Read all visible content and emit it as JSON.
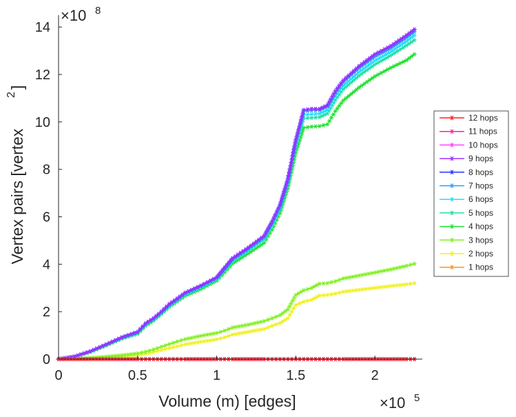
{
  "chart_data": {
    "type": "line",
    "title": "",
    "xlabel": "Volume (m) [edges]",
    "ylabel": "Vertex pairs [vertex",
    "ylabel_superscript": "2",
    "ylabel_close": "]",
    "xlim": [
      0,
      230000
    ],
    "ylim": [
      0,
      1450000000
    ],
    "x_exponent": "×10",
    "x_exponent_power": "5",
    "y_exponent": "×10",
    "y_exponent_power": "8",
    "x_ticks": [
      0,
      50000,
      100000,
      150000,
      200000
    ],
    "x_tick_labels": [
      "0",
      "0.5",
      "1",
      "1.5",
      "2"
    ],
    "y_ticks": [
      0,
      200000000,
      400000000,
      600000000,
      800000000,
      1000000000,
      1200000000,
      1400000000
    ],
    "y_tick_labels": [
      "0",
      "2",
      "4",
      "6",
      "8",
      "10",
      "12",
      "14"
    ],
    "legend_position": "right",
    "x": [
      0,
      10000,
      20000,
      30000,
      40000,
      50000,
      55000,
      60000,
      65000,
      70000,
      75000,
      80000,
      90000,
      100000,
      105000,
      110000,
      120000,
      130000,
      135000,
      140000,
      145000,
      150000,
      155000,
      160000,
      165000,
      170000,
      175000,
      180000,
      190000,
      200000,
      210000,
      220000,
      225000
    ],
    "series": [
      {
        "name": "12 hops",
        "color": "#ff2020",
        "values": [
          0,
          0,
          0,
          0,
          0,
          0,
          0,
          0,
          0,
          0,
          0,
          0,
          0,
          0,
          0,
          0,
          0,
          0,
          0,
          0,
          0,
          0,
          0,
          0,
          0,
          0,
          0,
          0,
          0,
          0,
          0,
          0,
          0
        ]
      },
      {
        "name": "11 hops",
        "color": "#ff1fa0",
        "values": [
          0,
          0,
          0,
          0,
          0,
          0,
          0,
          0,
          0,
          0,
          0,
          0,
          0,
          0,
          0,
          0,
          0,
          0,
          0,
          0,
          0,
          0,
          0,
          0,
          0,
          0,
          0,
          0,
          0,
          0,
          0,
          0,
          0
        ]
      },
      {
        "name": "10 hops",
        "color": "#ff40ff",
        "values": [
          0,
          0,
          0,
          0,
          0,
          0,
          0,
          0,
          0,
          0,
          0,
          0,
          0,
          0,
          0,
          0,
          0,
          0,
          0,
          0,
          0,
          0,
          0,
          0,
          0,
          0,
          0,
          0,
          0,
          0,
          0,
          0,
          0
        ]
      },
      {
        "name": "9 hops",
        "color": "#9a30ff",
        "values": [
          0,
          11000000,
          33000000,
          62000000,
          92000000,
          115000000,
          150000000,
          172000000,
          200000000,
          232000000,
          255000000,
          280000000,
          310000000,
          345000000,
          385000000,
          425000000,
          470000000,
          520000000,
          580000000,
          650000000,
          760000000,
          925000000,
          1050000000,
          1055000000,
          1055000000,
          1070000000,
          1130000000,
          1175000000,
          1235000000,
          1285000000,
          1320000000,
          1365000000,
          1390000000
        ]
      },
      {
        "name": "8 hops",
        "color": "#2030ff",
        "values": [
          0,
          11000000,
          33000000,
          62000000,
          92000000,
          115000000,
          150000000,
          172000000,
          200000000,
          232000000,
          255000000,
          280000000,
          310000000,
          345000000,
          385000000,
          425000000,
          470000000,
          520000000,
          580000000,
          650000000,
          760000000,
          925000000,
          1050000000,
          1055000000,
          1055000000,
          1070000000,
          1130000000,
          1175000000,
          1235000000,
          1285000000,
          1320000000,
          1365000000,
          1390000000
        ]
      },
      {
        "name": "7 hops",
        "color": "#2a9cff",
        "values": [
          0,
          11000000,
          32000000,
          61000000,
          90000000,
          113000000,
          148000000,
          170000000,
          198000000,
          229000000,
          252000000,
          277000000,
          307000000,
          342000000,
          382000000,
          421000000,
          466000000,
          515000000,
          575000000,
          645000000,
          755000000,
          918000000,
          1045000000,
          1048000000,
          1050000000,
          1065000000,
          1122000000,
          1168000000,
          1227000000,
          1275000000,
          1310000000,
          1355000000,
          1380000000
        ]
      },
      {
        "name": "6 hops",
        "color": "#20e0ff",
        "values": [
          0,
          10800000,
          32000000,
          60000000,
          89000000,
          112000000,
          146000000,
          168000000,
          196000000,
          226000000,
          249000000,
          274000000,
          304000000,
          339000000,
          378000000,
          417000000,
          462000000,
          510000000,
          570000000,
          640000000,
          748000000,
          908000000,
          1030000000,
          1032000000,
          1035000000,
          1050000000,
          1108000000,
          1152000000,
          1210000000,
          1258000000,
          1295000000,
          1340000000,
          1365000000
        ]
      },
      {
        "name": "5 hops",
        "color": "#20e0a0",
        "values": [
          0,
          10500000,
          31000000,
          59000000,
          88000000,
          110000000,
          144000000,
          166000000,
          194000000,
          224000000,
          247000000,
          271000000,
          301000000,
          336000000,
          374000000,
          413000000,
          457000000,
          505000000,
          563000000,
          633000000,
          740000000,
          898000000,
          1015000000,
          1017000000,
          1020000000,
          1035000000,
          1092000000,
          1138000000,
          1195000000,
          1242000000,
          1280000000,
          1322000000,
          1345000000
        ]
      },
      {
        "name": "4 hops",
        "color": "#20e030",
        "values": [
          0,
          10000000,
          30000000,
          57000000,
          86000000,
          107000000,
          140000000,
          162000000,
          190000000,
          220000000,
          243000000,
          266000000,
          295000000,
          330000000,
          365000000,
          402000000,
          445000000,
          490000000,
          545000000,
          615000000,
          720000000,
          870000000,
          975000000,
          980000000,
          982000000,
          990000000,
          1045000000,
          1090000000,
          1145000000,
          1192000000,
          1228000000,
          1260000000,
          1285000000
        ]
      },
      {
        "name": "3 hops",
        "color": "#80f020",
        "values": [
          0,
          1500000,
          5000000,
          10000000,
          16000000,
          24000000,
          31000000,
          40000000,
          52000000,
          63000000,
          74000000,
          84000000,
          98000000,
          110000000,
          120000000,
          133000000,
          145000000,
          160000000,
          172000000,
          185000000,
          210000000,
          270000000,
          290000000,
          300000000,
          318000000,
          320000000,
          328000000,
          340000000,
          352000000,
          365000000,
          378000000,
          393000000,
          402000000
        ]
      },
      {
        "name": "2 hops",
        "color": "#f0f020",
        "values": [
          0,
          1000000,
          3000000,
          7000000,
          11000000,
          17000000,
          22000000,
          29000000,
          38000000,
          46000000,
          54000000,
          62000000,
          73000000,
          83000000,
          92000000,
          103000000,
          115000000,
          127000000,
          140000000,
          152000000,
          172000000,
          228000000,
          242000000,
          250000000,
          268000000,
          270000000,
          276000000,
          284000000,
          292000000,
          300000000,
          308000000,
          315000000,
          320000000
        ]
      },
      {
        "name": "1 hops",
        "color": "#ff9020",
        "values": [
          0,
          0,
          0,
          0,
          0,
          0,
          0,
          0,
          0,
          0,
          0,
          0,
          0,
          0,
          0,
          0,
          0,
          0,
          0,
          0,
          0,
          0,
          0,
          0,
          0,
          0,
          0,
          0,
          0,
          0,
          0,
          0,
          0
        ]
      }
    ]
  }
}
